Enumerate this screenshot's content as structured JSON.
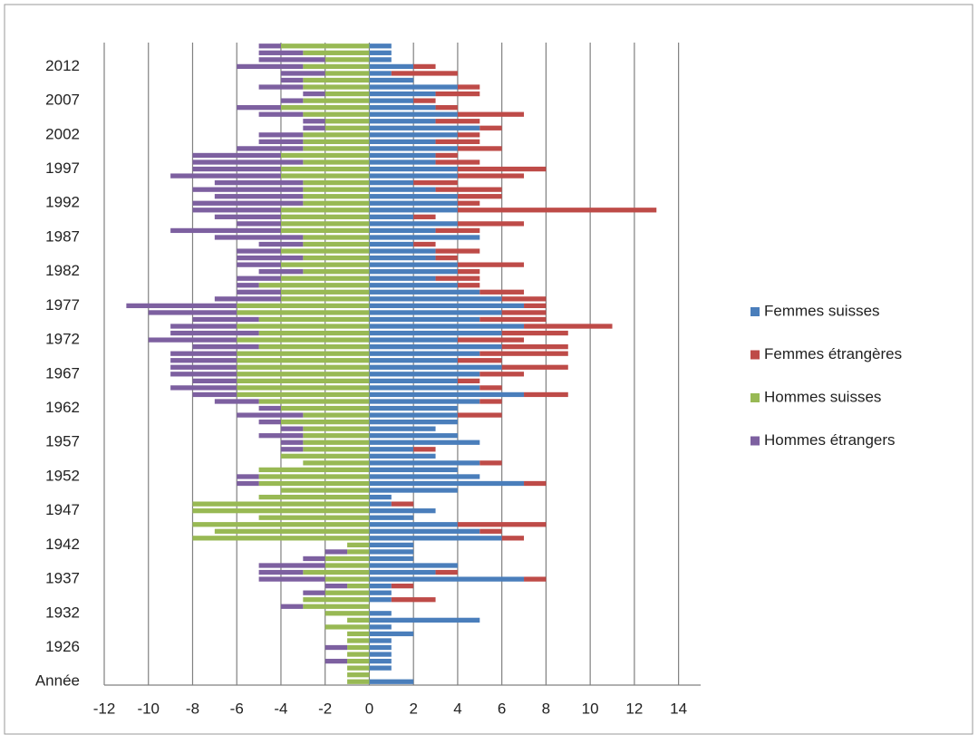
{
  "chart_data": {
    "type": "bar",
    "orientation": "horizontal",
    "stacked": true,
    "categories": [
      "Année",
      null,
      null,
      null,
      null,
      "1926",
      null,
      null,
      null,
      null,
      "1932",
      null,
      null,
      null,
      null,
      "1937",
      null,
      null,
      null,
      null,
      "1942",
      null,
      null,
      null,
      null,
      "1947",
      null,
      null,
      null,
      null,
      "1952",
      null,
      null,
      null,
      null,
      "1957",
      null,
      null,
      null,
      null,
      "1962",
      null,
      null,
      null,
      null,
      "1967",
      null,
      null,
      null,
      null,
      "1972",
      null,
      null,
      null,
      null,
      "1977",
      null,
      null,
      null,
      null,
      "1982",
      null,
      null,
      null,
      null,
      "1987",
      null,
      null,
      null,
      null,
      "1992",
      null,
      null,
      null,
      null,
      "1997",
      null,
      null,
      null,
      null,
      "2002",
      null,
      null,
      null,
      null,
      "2007",
      null,
      null,
      null,
      null,
      "2012",
      null,
      null,
      null
    ],
    "series": [
      {
        "name": "Femmes suisses",
        "color": "#4a7ebb",
        "side": "positive",
        "values": [
          2,
          0,
          1,
          1,
          1,
          1,
          1,
          2,
          1,
          5,
          1,
          0,
          1,
          1,
          1,
          7,
          3,
          4,
          2,
          2,
          2,
          6,
          5,
          4,
          2,
          3,
          1,
          1,
          4,
          7,
          5,
          4,
          5,
          3,
          2,
          5,
          4,
          3,
          4,
          4,
          4,
          5,
          7,
          5,
          4,
          5,
          6,
          4,
          5,
          6,
          4,
          6,
          7,
          5,
          6,
          7,
          6,
          5,
          4,
          3,
          4,
          4,
          3,
          3,
          2,
          5,
          3,
          4,
          2,
          4,
          4,
          4,
          3,
          2,
          4,
          4,
          3,
          3,
          4,
          3,
          4,
          5,
          3,
          4,
          3,
          2,
          3,
          4,
          2,
          1,
          2,
          1,
          1,
          1
        ]
      },
      {
        "name": "Femmes étrangères",
        "color": "#be4b48",
        "side": "positive",
        "values": [
          0,
          0,
          0,
          0,
          0,
          0,
          0,
          0,
          0,
          0,
          0,
          0,
          2,
          0,
          1,
          1,
          1,
          0,
          0,
          0,
          0,
          1,
          1,
          4,
          0,
          0,
          1,
          0,
          0,
          1,
          0,
          0,
          1,
          0,
          1,
          0,
          0,
          0,
          0,
          2,
          0,
          1,
          2,
          1,
          1,
          2,
          3,
          2,
          4,
          3,
          3,
          3,
          4,
          3,
          2,
          1,
          2,
          2,
          1,
          2,
          1,
          3,
          1,
          2,
          1,
          0,
          2,
          3,
          1,
          9,
          1,
          2,
          3,
          2,
          3,
          4,
          2,
          1,
          2,
          2,
          1,
          1,
          2,
          3,
          1,
          1,
          2,
          1,
          0,
          3,
          1,
          0,
          0,
          0
        ]
      },
      {
        "name": "Hommes suisses",
        "color": "#98b954",
        "side": "negative",
        "values": [
          -1,
          -1,
          -1,
          -1,
          -1,
          -1,
          -1,
          -1,
          -2,
          -1,
          -2,
          -3,
          -3,
          -2,
          -1,
          -2,
          -3,
          -2,
          -2,
          -1,
          -1,
          -8,
          -7,
          -8,
          -5,
          -8,
          -8,
          -5,
          -4,
          -5,
          -5,
          -5,
          -3,
          -4,
          -3,
          -3,
          -3,
          -3,
          -4,
          -3,
          -4,
          -5,
          -6,
          -6,
          -6,
          -6,
          -6,
          -6,
          -6,
          -5,
          -6,
          -5,
          -6,
          -5,
          -6,
          -6,
          -4,
          -4,
          -5,
          -4,
          -3,
          -4,
          -3,
          -4,
          -3,
          -3,
          -4,
          -4,
          -4,
          -4,
          -3,
          -3,
          -3,
          -3,
          -4,
          -4,
          -3,
          -4,
          -3,
          -3,
          -3,
          -2,
          -2,
          -3,
          -4,
          -3,
          -2,
          -3,
          -3,
          -2,
          -3,
          -2,
          -3,
          -4
        ]
      },
      {
        "name": "Hommes étrangers",
        "color": "#7d60a0",
        "side": "negative",
        "values": [
          0,
          0,
          0,
          -1,
          0,
          -1,
          0,
          0,
          0,
          0,
          0,
          -1,
          0,
          -1,
          -1,
          -3,
          -2,
          -3,
          -1,
          -1,
          0,
          0,
          0,
          0,
          0,
          0,
          0,
          0,
          0,
          -1,
          -1,
          0,
          0,
          0,
          -1,
          -1,
          -2,
          -1,
          -1,
          -3,
          -1,
          -2,
          -2,
          -3,
          -2,
          -3,
          -3,
          -3,
          -3,
          -3,
          -4,
          -4,
          -3,
          -3,
          -4,
          -5,
          -3,
          -2,
          -1,
          -2,
          -2,
          -2,
          -3,
          -2,
          -2,
          -4,
          -5,
          -2,
          -3,
          -4,
          -5,
          -4,
          -5,
          -4,
          -5,
          -4,
          -5,
          -4,
          -3,
          -2,
          -2,
          -1,
          -1,
          -2,
          -2,
          -1,
          -1,
          -2,
          -1,
          -2,
          -3,
          -3,
          -2,
          -1
        ]
      }
    ],
    "xlim": [
      -12,
      15
    ],
    "xticks": [
      -12,
      -10,
      -8,
      -6,
      -4,
      -2,
      0,
      2,
      4,
      6,
      8,
      10,
      12,
      14
    ],
    "grid": true,
    "legend": "right"
  }
}
